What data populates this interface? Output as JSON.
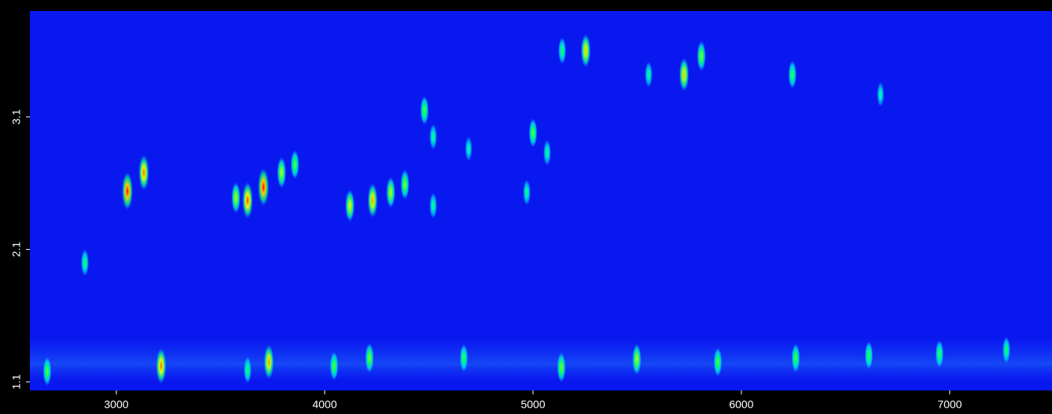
{
  "chart_data": {
    "type": "heatmap-peaks",
    "xlim": [
      2585,
      7491
    ],
    "ylim": [
      1.035,
      3.9
    ],
    "xticks": [
      3000,
      4000,
      5000,
      6000,
      7000
    ],
    "yticks": [
      1.1,
      2.1,
      3.1
    ],
    "colormap": [
      "#0000ff",
      "#00e0ff",
      "#00ff60",
      "#ffff00",
      "#ff0000"
    ],
    "background": "#0a18f0",
    "x": [
      2668,
      3053,
      3132,
      3215,
      3630,
      3706,
      3793,
      3732,
      3574,
      3857,
      4121,
      4230,
      4317,
      4385,
      4479,
      4215,
      4045,
      4668,
      5136,
      5253,
      5140,
      5498,
      5725,
      5808,
      5887,
      6261,
      6245,
      6612,
      6951,
      7272,
      5000,
      4521,
      5068,
      2849,
      3630,
      4521,
      5555,
      6668,
      4970,
      4691
    ],
    "y": [
      1.18,
      2.54,
      2.68,
      1.22,
      2.47,
      2.57,
      2.68,
      1.25,
      2.49,
      2.74,
      2.43,
      2.47,
      2.53,
      2.59,
      3.15,
      1.28,
      1.22,
      1.28,
      1.21,
      3.6,
      3.6,
      1.27,
      3.42,
      3.56,
      1.25,
      1.28,
      3.42,
      1.3,
      1.31,
      1.34,
      2.98,
      2.43,
      2.83,
      2.0,
      1.19,
      2.95,
      3.42,
      3.27,
      2.53,
      2.86
    ],
    "values": [
      60,
      100,
      90,
      90,
      95,
      100,
      70,
      85,
      70,
      60,
      75,
      85,
      70,
      65,
      60,
      65,
      60,
      55,
      65,
      80,
      50,
      70,
      80,
      65,
      60,
      60,
      55,
      55,
      55,
      50,
      60,
      45,
      45,
      50,
      50,
      45,
      45,
      40,
      45,
      40
    ]
  }
}
